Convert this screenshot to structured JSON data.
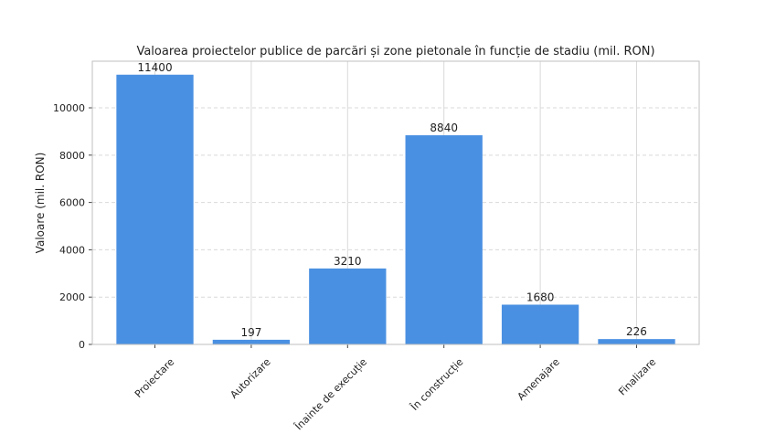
{
  "chart_data": {
    "type": "bar",
    "title": "Valoarea proiectelor publice de parcări și zone pietonale în funcție de stadiu (mil. RON)",
    "xlabel": "",
    "ylabel": "Valoare (mil. RON)",
    "categories": [
      "Proiectare",
      "Autorizare",
      "Înainte de execuție",
      "În construcție",
      "Amenajare",
      "Finalizare"
    ],
    "values": [
      11400,
      197,
      3210,
      8840,
      1680,
      226
    ],
    "data_labels": [
      "11400",
      "197",
      "3210",
      "8840",
      "1680",
      "226"
    ],
    "ylim": [
      0,
      11970
    ],
    "yticks": [
      0,
      2000,
      4000,
      6000,
      8000,
      10000
    ],
    "ytick_labels": [
      "0",
      "2000",
      "4000",
      "6000",
      "8000",
      "10000"
    ],
    "grid": true,
    "legend": "none",
    "bar_color": "#4a90e2"
  }
}
